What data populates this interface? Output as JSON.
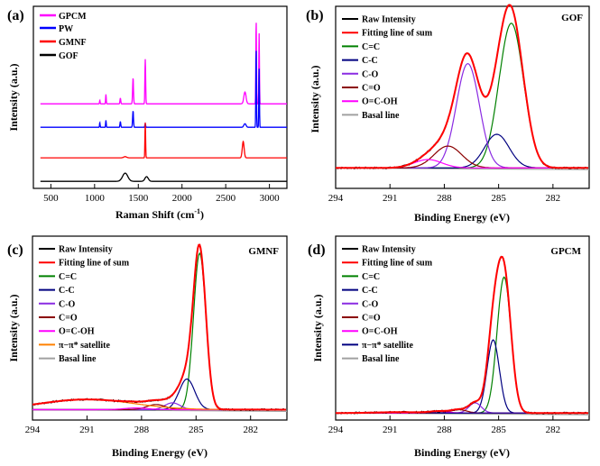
{
  "figure": {
    "colors": {
      "black": "#000000",
      "red": "#ff0000",
      "green": "#008000",
      "navy": "#000080",
      "violet": "#8a2be2",
      "maroon": "#8b0000",
      "magenta": "#ff00ff",
      "blue": "#0000ff",
      "grey": "#a0a0a0",
      "orange": "#ff8000"
    }
  },
  "chart_data": [
    {
      "id": "a",
      "panel_label": "(a)",
      "type": "line",
      "xlabel_main": "Raman Shift (cm",
      "xlabel_sup": "-1",
      "xlabel_close": ")",
      "ylabel": "Intensity (a.u.)",
      "xlim": [
        300,
        3200
      ],
      "xticks": [
        500,
        1000,
        1500,
        2000,
        2500,
        3000
      ],
      "xticklabels": [
        "500",
        "1000",
        "1500",
        "2000",
        "2500",
        "3000"
      ],
      "legend_position": "top-left",
      "legend": [
        "GPCM",
        "PW",
        "GMNF",
        "GOF"
      ],
      "series": [
        {
          "name": "GPCM",
          "color": "#ff00ff",
          "baseline": 0.72,
          "peaks": [
            [
              1060,
              8,
              0.03
            ],
            [
              1130,
              8,
              0.08
            ],
            [
              1295,
              10,
              0.05
            ],
            [
              1440,
              12,
              0.22
            ],
            [
              1580,
              10,
              0.38
            ],
            [
              2720,
              30,
              0.1
            ],
            [
              2848,
              8,
              0.72
            ],
            [
              2882,
              8,
              0.6
            ]
          ]
        },
        {
          "name": "PW",
          "color": "#0000ff",
          "baseline": 0.52,
          "peaks": [
            [
              1060,
              8,
              0.04
            ],
            [
              1130,
              8,
              0.06
            ],
            [
              1295,
              10,
              0.05
            ],
            [
              1440,
              12,
              0.14
            ],
            [
              1580,
              10,
              0.03
            ],
            [
              2720,
              30,
              0.03
            ],
            [
              2848,
              8,
              0.68
            ],
            [
              2882,
              8,
              0.5
            ]
          ]
        },
        {
          "name": "GMNF",
          "color": "#ff0000",
          "baseline": 0.26,
          "peaks": [
            [
              1350,
              40,
              0.01
            ],
            [
              1580,
              9,
              0.3
            ],
            [
              2700,
              25,
              0.14
            ]
          ]
        },
        {
          "name": "GOF",
          "color": "#000000",
          "baseline": 0.06,
          "peaks": [
            [
              1350,
              70,
              0.07
            ],
            [
              1595,
              45,
              0.04
            ]
          ]
        }
      ]
    },
    {
      "id": "b",
      "panel_label": "(b)",
      "sample": "GOF",
      "type": "line",
      "xlabel": "Binding Energy (eV)",
      "ylabel": "Intensity (a.u.)",
      "xlim": [
        294,
        280
      ],
      "xticks": [
        294,
        291,
        288,
        285,
        282
      ],
      "xticklabels": [
        "294",
        "291",
        "288",
        "285",
        "282"
      ],
      "legend_position": "top-left",
      "legend": [
        "Raw Intensity",
        "Fitting line of sum",
        "C=C",
        "C-C",
        "C-O",
        "C=O",
        "O=C-OH",
        "Basal line"
      ],
      "baseline": 0.1,
      "components": [
        {
          "name": "C=C",
          "color": "#008000",
          "center": 284.3,
          "fwhm": 1.6,
          "height": 0.86
        },
        {
          "name": "C-C",
          "color": "#000080",
          "center": 285.1,
          "fwhm": 1.6,
          "height": 0.2
        },
        {
          "name": "C-O",
          "color": "#8a2be2",
          "center": 286.7,
          "fwhm": 1.5,
          "height": 0.62
        },
        {
          "name": "C=O",
          "color": "#8b0000",
          "center": 287.8,
          "fwhm": 1.8,
          "height": 0.13
        },
        {
          "name": "O=C-OH",
          "color": "#ff00ff",
          "center": 288.9,
          "fwhm": 1.8,
          "height": 0.05
        }
      ]
    },
    {
      "id": "c",
      "panel_label": "(c)",
      "sample": "GMNF",
      "type": "line",
      "xlabel": "Binding Energy (eV)",
      "ylabel": "Intensity (a.u.)",
      "xlim": [
        294,
        280
      ],
      "xticks": [
        294,
        291,
        288,
        285,
        282
      ],
      "xticklabels": [
        "294",
        "291",
        "288",
        "285",
        "282"
      ],
      "legend_position": "top-left",
      "legend": [
        "Raw Intensity",
        "Fitting line of sum",
        "C=C",
        "C-C",
        "C-O",
        "C=O",
        "O=C-OH",
        "π−π* satellite",
        "Basal line"
      ],
      "baseline": 0.04,
      "components": [
        {
          "name": "C=C",
          "color": "#008000",
          "center": 284.8,
          "fwhm": 0.8,
          "height": 0.92
        },
        {
          "name": "C-C",
          "color": "#000080",
          "center": 285.5,
          "fwhm": 1.0,
          "height": 0.18
        },
        {
          "name": "C-O",
          "color": "#8a2be2",
          "center": 286.3,
          "fwhm": 1.0,
          "height": 0.04
        },
        {
          "name": "C=O",
          "color": "#8b0000",
          "center": 287.2,
          "fwhm": 1.2,
          "height": 0.03
        },
        {
          "name": "O=C-OH",
          "color": "#ff00ff",
          "center": 288.3,
          "fwhm": 1.5,
          "height": 0.01
        },
        {
          "name": "π−π* satellite",
          "color": "#ff8000",
          "center": 291.0,
          "fwhm": 6.0,
          "height": 0.06
        }
      ]
    },
    {
      "id": "d",
      "panel_label": "(d)",
      "sample": "GPCM",
      "type": "line",
      "xlabel": "Binding Energy (eV)",
      "ylabel": "Intensity (a.u.)",
      "xlim": [
        294,
        280
      ],
      "xticks": [
        294,
        291,
        288,
        285,
        282
      ],
      "xticklabels": [
        "294",
        "291",
        "288",
        "285",
        "282"
      ],
      "legend_position": "top-left",
      "legend": [
        "Raw Intensity",
        "Fitting line of sum",
        "C=C",
        "C-C",
        "C-O",
        "C=O",
        "O=C-OH",
        "π−π* satellite",
        "Basal line"
      ],
      "baseline": 0.02,
      "components": [
        {
          "name": "C=C",
          "color": "#008000",
          "center": 284.7,
          "fwhm": 0.9,
          "height": 0.8
        },
        {
          "name": "C-C",
          "color": "#000080",
          "center": 285.3,
          "fwhm": 0.8,
          "height": 0.43
        },
        {
          "name": "C-O",
          "color": "#8a2be2",
          "center": 286.3,
          "fwhm": 0.8,
          "height": 0.06
        },
        {
          "name": "C=O",
          "color": "#8b0000",
          "center": 287.2,
          "fwhm": 1.0,
          "height": 0.02
        },
        {
          "name": "O=C-OH",
          "color": "#ff00ff",
          "center": 288.3,
          "fwhm": 1.2,
          "height": 0.01
        },
        {
          "name": "π−π* satellite",
          "color": "#000080",
          "center": 290.5,
          "fwhm": 3.0,
          "height": 0.005
        }
      ]
    }
  ]
}
